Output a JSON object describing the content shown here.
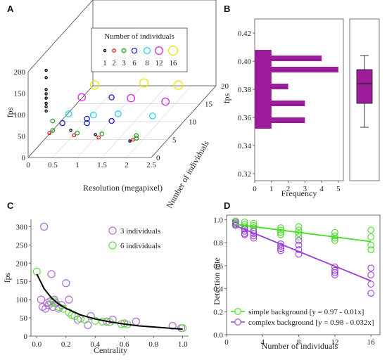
{
  "chart_data": [
    {
      "panel": "A",
      "type": "scatter",
      "xlabel": "Resolution (megapixel)",
      "ylabel": "fps",
      "zlabel": "Number of individuals",
      "x_ticks": [
        "0",
        "0.5",
        "1",
        "1.5",
        "2",
        "2.5"
      ],
      "y_ticks": [
        "0",
        "50",
        "100",
        "150",
        "200"
      ],
      "z_ticks": [
        "0",
        "5",
        "10",
        "15",
        "20"
      ],
      "legend_title": "Number of individuals",
      "legend_entries": [
        "1",
        "2",
        "3",
        "6",
        "8",
        "12",
        "16"
      ],
      "legend_colors": [
        "#000000",
        "#e31a1c",
        "#33a02c",
        "#1f1fcc",
        "#22d3ee",
        "#d92bd9",
        "#e8e800"
      ],
      "points": [
        {
          "n": 1,
          "res": 0.3,
          "fps": 195
        },
        {
          "n": 1,
          "res": 0.3,
          "fps": 178
        },
        {
          "n": 1,
          "res": 0.3,
          "fps": 150
        },
        {
          "n": 1,
          "res": 0.3,
          "fps": 140
        },
        {
          "n": 1,
          "res": 0.3,
          "fps": 130
        },
        {
          "n": 1,
          "res": 0.3,
          "fps": 118
        },
        {
          "n": 1,
          "res": 0.3,
          "fps": 110
        },
        {
          "n": 1,
          "res": 0.3,
          "fps": 100
        },
        {
          "n": 1,
          "res": 0.8,
          "fps": 55
        },
        {
          "n": 1,
          "res": 1.3,
          "fps": 45
        },
        {
          "n": 1,
          "res": 2.0,
          "fps": 30
        },
        {
          "n": 2,
          "res": 0.3,
          "fps": 40
        },
        {
          "n": 2,
          "res": 0.8,
          "fps": 35
        },
        {
          "n": 2,
          "res": 1.3,
          "fps": 30
        },
        {
          "n": 2,
          "res": 2.0,
          "fps": 25
        },
        {
          "n": 3,
          "res": 0.3,
          "fps": 60
        },
        {
          "n": 3,
          "res": 0.3,
          "fps": 38
        },
        {
          "n": 3,
          "res": 0.8,
          "fps": 32
        },
        {
          "n": 3,
          "res": 1.3,
          "fps": 30
        },
        {
          "n": 3,
          "res": 2.0,
          "fps": 26
        },
        {
          "n": 3,
          "res": 2.0,
          "fps": 20
        },
        {
          "n": 6,
          "res": 0.3,
          "fps": 30
        },
        {
          "n": 6,
          "res": 0.8,
          "fps": 40
        },
        {
          "n": 6,
          "res": 0.8,
          "fps": 30
        },
        {
          "n": 6,
          "res": 1.3,
          "fps": 35
        },
        {
          "n": 6,
          "res": 1.3,
          "fps": 90
        },
        {
          "n": 8,
          "res": 0.3,
          "fps": 35
        },
        {
          "n": 8,
          "res": 0.8,
          "fps": 32
        },
        {
          "n": 8,
          "res": 1.3,
          "fps": 35
        },
        {
          "n": 8,
          "res": 2.0,
          "fps": 30
        },
        {
          "n": 12,
          "res": 0.3,
          "fps": 40
        },
        {
          "n": 12,
          "res": 1.3,
          "fps": 38
        },
        {
          "n": 12,
          "res": 2.0,
          "fps": 30
        },
        {
          "n": 16,
          "res": 0.3,
          "fps": 35
        },
        {
          "n": 16,
          "res": 1.3,
          "fps": 40
        },
        {
          "n": 16,
          "res": 2.0,
          "fps": 35
        }
      ]
    },
    {
      "panel": "B",
      "type": "bar",
      "orientation": "horizontal",
      "xlabel": "Frequency",
      "ylabel": "fps",
      "x_ticks": [
        "0",
        "1",
        "2",
        "3",
        "4",
        "5"
      ],
      "y_ticks": [
        "0.32",
        "0.34",
        "0.36",
        "0.38",
        "0.40",
        "0.42"
      ],
      "xlim": [
        0,
        5.3
      ],
      "ylim": [
        0.315,
        0.43
      ],
      "bin_width": 0.004,
      "bin_starts": [
        0.352,
        0.356,
        0.36,
        0.364,
        0.368,
        0.372,
        0.376,
        0.38,
        0.384,
        0.388,
        0.392,
        0.396,
        0.4,
        0.404
      ],
      "counts": [
        1,
        3,
        1,
        1,
        3,
        1,
        1,
        2,
        1,
        1,
        5,
        1,
        4,
        1
      ],
      "box": {
        "min": 0.353,
        "q1": 0.37,
        "median": 0.384,
        "q3": 0.394,
        "max": 0.404
      },
      "color": "#9b1b9b"
    },
    {
      "panel": "C",
      "type": "scatter",
      "xlabel": "Centrality",
      "ylabel": "fps",
      "x_ticks": [
        "0.0",
        "0.2",
        "0.4",
        "0.6",
        "0.8",
        "1.0"
      ],
      "y_ticks": [
        "0",
        "50",
        "100",
        "150",
        "200",
        "250",
        "300"
      ],
      "xlim": [
        -0.04,
        1.04
      ],
      "ylim": [
        0,
        320
      ],
      "series": [
        {
          "name": "3 individuals",
          "color": "#b36bde",
          "points": [
            [
              0.05,
              300
            ],
            [
              0.03,
              100
            ],
            [
              0.04,
              80
            ],
            [
              0.06,
              75
            ],
            [
              0.07,
              90
            ],
            [
              0.08,
              85
            ],
            [
              0.09,
              95
            ],
            [
              0.1,
              170
            ],
            [
              0.11,
              80
            ],
            [
              0.12,
              100
            ],
            [
              0.13,
              90
            ],
            [
              0.15,
              75
            ],
            [
              0.17,
              85
            ],
            [
              0.2,
              145
            ],
            [
              0.22,
              100
            ],
            [
              0.28,
              45
            ],
            [
              0.35,
              30
            ],
            [
              0.37,
              55
            ],
            [
              0.48,
              40
            ],
            [
              0.52,
              45
            ],
            [
              0.6,
              35
            ],
            [
              0.68,
              40
            ],
            [
              0.93,
              28
            ],
            [
              0.99,
              22
            ]
          ]
        },
        {
          "name": "6 individuals",
          "color": "#66dd44",
          "points": [
            [
              0.0,
              177
            ],
            [
              0.1,
              90
            ],
            [
              0.12,
              95
            ],
            [
              0.15,
              80
            ],
            [
              0.18,
              75
            ],
            [
              0.22,
              65
            ],
            [
              0.24,
              58
            ],
            [
              0.26,
              55
            ],
            [
              0.3,
              48
            ],
            [
              0.33,
              45
            ],
            [
              0.4,
              42
            ],
            [
              0.45,
              40
            ],
            [
              0.5,
              38
            ],
            [
              0.58,
              33
            ],
            [
              0.62,
              32
            ],
            [
              1.0,
              22
            ]
          ]
        }
      ],
      "fit": {
        "color": "#000000",
        "x": [
          0.0,
          0.05,
          0.1,
          0.15,
          0.2,
          0.3,
          0.4,
          0.5,
          0.6,
          0.7,
          0.8,
          0.9,
          1.0
        ],
        "y": [
          170,
          130,
          105,
          88,
          76,
          58,
          47,
          39,
          33,
          28,
          25,
          22,
          19
        ]
      }
    },
    {
      "panel": "D",
      "type": "scatter",
      "xlabel": "Number of individuals",
      "ylabel": "Detection rate",
      "x_ticks": [
        "0",
        "4",
        "8",
        "12",
        "16"
      ],
      "y_ticks": [
        "0.0",
        "0.2",
        "0.4",
        "0.6",
        "0.8",
        "1.0"
      ],
      "xlim": [
        0,
        17
      ],
      "ylim": [
        0,
        1.04
      ],
      "series": [
        {
          "name": "simple background [y = 0.97 - 0.01x]",
          "color": "#44dd22",
          "fit": [
            0.97,
            -0.01
          ],
          "points": [
            [
              1,
              0.99
            ],
            [
              1,
              0.98
            ],
            [
              1,
              0.97
            ],
            [
              1,
              0.96
            ],
            [
              2,
              0.98
            ],
            [
              2,
              0.96
            ],
            [
              2,
              0.94
            ],
            [
              2,
              0.92
            ],
            [
              3,
              0.97
            ],
            [
              3,
              0.95
            ],
            [
              3,
              0.93
            ],
            [
              3,
              0.91
            ],
            [
              6,
              0.93
            ],
            [
              6,
              0.91
            ],
            [
              6,
              0.89
            ],
            [
              6,
              0.87
            ],
            [
              8,
              0.94
            ],
            [
              8,
              0.91
            ],
            [
              8,
              0.88
            ],
            [
              8,
              0.85
            ],
            [
              12,
              0.89
            ],
            [
              12,
              0.86
            ],
            [
              12,
              0.84
            ],
            [
              12,
              0.82
            ],
            [
              16,
              0.91
            ],
            [
              16,
              0.85
            ],
            [
              16,
              0.78
            ],
            [
              16,
              0.74
            ]
          ]
        },
        {
          "name": "complex background [y = 0.98 - 0.032x]",
          "color": "#9a3dd6",
          "fit": [
            0.98,
            -0.032
          ],
          "points": [
            [
              1,
              0.98
            ],
            [
              1,
              0.96
            ],
            [
              1,
              0.95
            ],
            [
              2,
              0.92
            ],
            [
              2,
              0.9
            ],
            [
              2,
              0.88
            ],
            [
              2,
              0.87
            ],
            [
              3,
              0.9
            ],
            [
              3,
              0.88
            ],
            [
              3,
              0.86
            ],
            [
              3,
              0.84
            ],
            [
              6,
              0.79
            ],
            [
              6,
              0.77
            ],
            [
              6,
              0.75
            ],
            [
              6,
              0.73
            ],
            [
              8,
              0.82
            ],
            [
              8,
              0.78
            ],
            [
              8,
              0.74
            ],
            [
              8,
              0.7
            ],
            [
              12,
              0.59
            ],
            [
              12,
              0.56
            ],
            [
              12,
              0.54
            ],
            [
              12,
              0.52
            ],
            [
              16,
              0.58
            ],
            [
              16,
              0.52
            ],
            [
              16,
              0.44
            ],
            [
              16,
              0.36
            ]
          ]
        }
      ]
    }
  ]
}
